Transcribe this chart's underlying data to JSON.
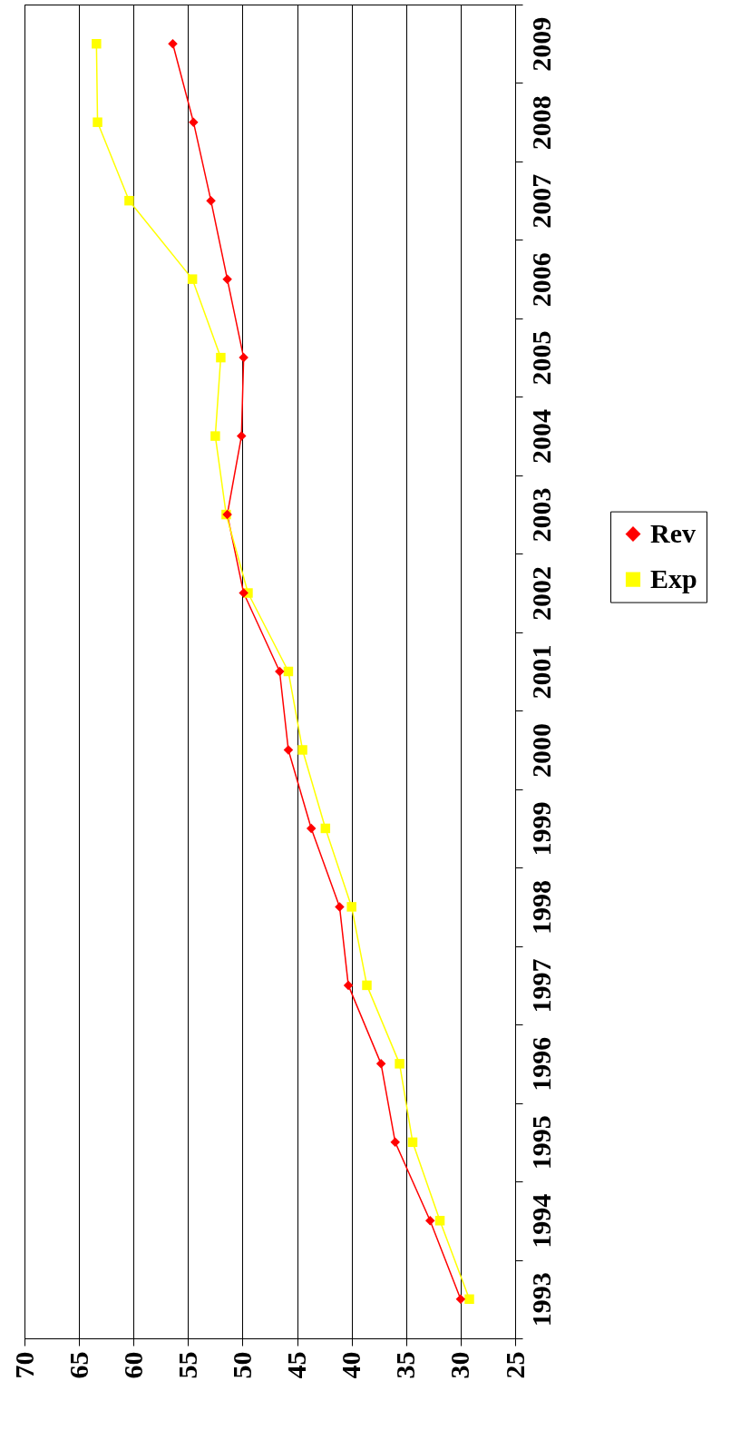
{
  "chart_data": {
    "type": "line",
    "orientation": "horizontal",
    "categories": [
      "2009",
      "2008",
      "2007",
      "2006",
      "2005",
      "2004",
      "2003",
      "2002",
      "2001",
      "2000",
      "1999",
      "1998",
      "1997",
      "1996",
      "1995",
      "1994",
      "1993"
    ],
    "series": [
      {
        "name": "Rev",
        "color": "#ff0000",
        "marker": "diamond",
        "values": [
          56.4,
          54.5,
          52.9,
          51.4,
          49.9,
          50.1,
          51.4,
          49.9,
          46.6,
          45.8,
          43.7,
          41.1,
          40.3,
          37.3,
          36.0,
          32.8,
          30.0
        ]
      },
      {
        "name": "Exp",
        "color": "#ffff00",
        "marker": "square",
        "values": [
          63.4,
          63.3,
          60.4,
          54.6,
          52.0,
          52.5,
          51.5,
          49.5,
          45.8,
          44.5,
          42.4,
          40.0,
          38.6,
          35.6,
          34.4,
          31.9,
          29.2
        ]
      }
    ],
    "xlim": [
      70,
      25
    ],
    "xticks": [
      70,
      65,
      60,
      55,
      50,
      45,
      40,
      35,
      30,
      25
    ],
    "grid": "x",
    "legend": "right",
    "line_style": "solid"
  }
}
